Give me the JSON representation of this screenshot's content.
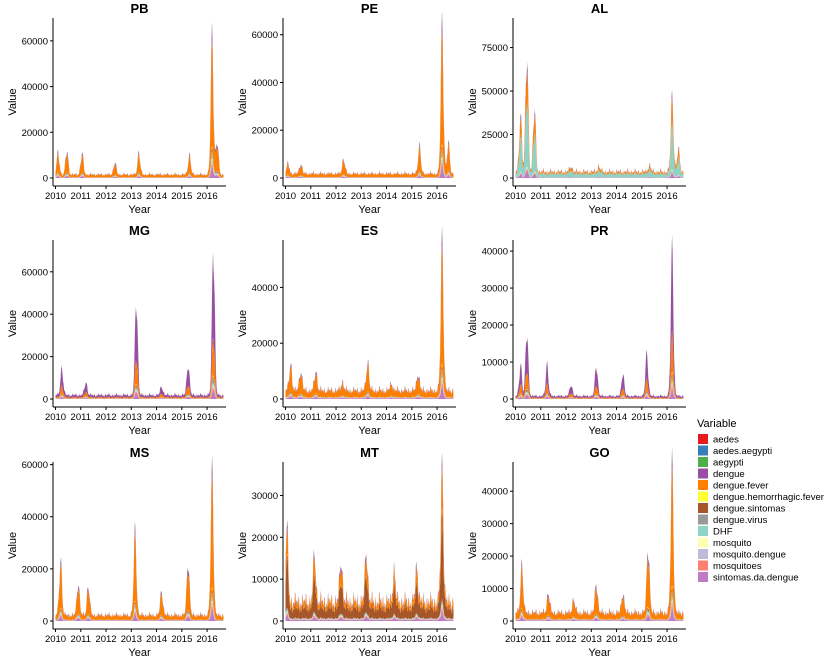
{
  "chart_data": {
    "type": "area",
    "stacked": true,
    "facets": [
      "PB",
      "PE",
      "AL",
      "MG",
      "ES",
      "PR",
      "MS",
      "MT",
      "GO"
    ],
    "xlabel": "Year",
    "ylabel": "Value",
    "x_ticks": [
      "2010",
      "2011",
      "2012",
      "2013",
      "2014",
      "2015",
      "2016"
    ],
    "xlim": [
      2009.9,
      2016.75
    ],
    "legend": {
      "title": "Variable",
      "placement": "right",
      "entries": [
        {
          "name": "aedes",
          "color": "#E41A1C"
        },
        {
          "name": "aedes.aegypti",
          "color": "#377EB8"
        },
        {
          "name": "aegypti",
          "color": "#4DAF4A"
        },
        {
          "name": "dengue",
          "color": "#984EA3"
        },
        {
          "name": "dengue.fever",
          "color": "#FF7F00"
        },
        {
          "name": "dengue.hemorrhagic.fever",
          "color": "#FFFF33"
        },
        {
          "name": "dengue.sintomas",
          "color": "#A65628"
        },
        {
          "name": "dengue.virus",
          "color": "#999999"
        },
        {
          "name": "DHF",
          "color": "#8DD3C7"
        },
        {
          "name": "mosquito",
          "color": "#FFFFB3"
        },
        {
          "name": "mosquito.dengue",
          "color": "#BEBADA"
        },
        {
          "name": "mosquitoes",
          "color": "#FB8072"
        },
        {
          "name": "sintomas.da.dengue",
          "color": "#C07BC5"
        }
      ]
    },
    "panels": [
      {
        "title": "PB",
        "y_ticks": [
          0,
          20000,
          40000,
          60000
        ],
        "ymax": 70000,
        "dominant": 4,
        "base": 1500,
        "events": [
          [
            2010.1,
            9000
          ],
          [
            2010.45,
            10000
          ],
          [
            2011.05,
            9000
          ],
          [
            2012.35,
            5000
          ],
          [
            2013.3,
            9000
          ],
          [
            2015.3,
            8000
          ],
          [
            2016.2,
            57000
          ],
          [
            2016.4,
            14000
          ]
        ]
      },
      {
        "title": "PE",
        "y_ticks": [
          0,
          20000,
          40000,
          60000
        ],
        "ymax": 67000,
        "dominant": 4,
        "base": 1800,
        "events": [
          [
            2010.1,
            4000
          ],
          [
            2010.6,
            4000
          ],
          [
            2012.3,
            6000
          ],
          [
            2015.3,
            11000
          ],
          [
            2016.2,
            58000
          ],
          [
            2016.45,
            12000
          ]
        ]
      },
      {
        "title": "AL",
        "y_ticks": [
          0,
          25000,
          50000,
          75000
        ],
        "ymax": 92000,
        "dominant": 8,
        "base": 3500,
        "events": [
          [
            2010.2,
            30000
          ],
          [
            2010.45,
            65000
          ],
          [
            2010.75,
            35000
          ],
          [
            2012.2,
            3000
          ],
          [
            2013.3,
            3000
          ],
          [
            2015.3,
            3500
          ],
          [
            2016.2,
            40000
          ],
          [
            2016.45,
            12000
          ]
        ]
      },
      {
        "title": "MG",
        "y_ticks": [
          0,
          20000,
          40000,
          60000
        ],
        "ymax": 75000,
        "dominant": 3,
        "base": 1800,
        "events": [
          [
            2010.25,
            12000
          ],
          [
            2011.2,
            6000
          ],
          [
            2013.2,
            44000
          ],
          [
            2014.2,
            4000
          ],
          [
            2015.25,
            14000
          ],
          [
            2016.25,
            68000
          ]
        ]
      },
      {
        "title": "ES",
        "y_ticks": [
          0,
          20000,
          40000
        ],
        "ymax": 57000,
        "dominant": 4,
        "base": 3000,
        "events": [
          [
            2010.2,
            9000
          ],
          [
            2010.6,
            7000
          ],
          [
            2011.2,
            7000
          ],
          [
            2012.25,
            3000
          ],
          [
            2013.25,
            10000
          ],
          [
            2014.2,
            2500
          ],
          [
            2015.25,
            6000
          ],
          [
            2016.2,
            50000
          ]
        ]
      },
      {
        "title": "PR",
        "y_ticks": [
          0,
          10000,
          20000,
          30000,
          40000
        ],
        "ymax": 43000,
        "dominant": 3,
        "base": 800,
        "events": [
          [
            2010.2,
            8000
          ],
          [
            2010.45,
            17000
          ],
          [
            2011.25,
            8000
          ],
          [
            2012.2,
            3000
          ],
          [
            2013.2,
            8000
          ],
          [
            2014.25,
            6000
          ],
          [
            2015.2,
            11000
          ],
          [
            2016.2,
            37000
          ]
        ]
      },
      {
        "title": "MS",
        "y_ticks": [
          0,
          20000,
          40000,
          60000
        ],
        "ymax": 61000,
        "dominant": 4,
        "base": 2200,
        "events": [
          [
            2010.2,
            20000
          ],
          [
            2010.9,
            12000
          ],
          [
            2011.3,
            11000
          ],
          [
            2013.15,
            30000
          ],
          [
            2014.2,
            9000
          ],
          [
            2015.25,
            20000
          ],
          [
            2016.2,
            52000
          ]
        ]
      },
      {
        "title": "MT",
        "y_ticks": [
          0,
          10000,
          20000,
          30000
        ],
        "ymax": 38000,
        "dominant": 6,
        "base": 4500,
        "events": [
          [
            2010.05,
            17000
          ],
          [
            2011.15,
            11000
          ],
          [
            2012.2,
            10000
          ],
          [
            2013.2,
            12000
          ],
          [
            2014.3,
            7000
          ],
          [
            2015.2,
            8000
          ],
          [
            2016.2,
            30000
          ]
        ]
      },
      {
        "title": "GO",
        "y_ticks": [
          0,
          10000,
          20000,
          30000,
          40000
        ],
        "ymax": 49000,
        "dominant": 4,
        "base": 2500,
        "events": [
          [
            2010.25,
            14000
          ],
          [
            2011.3,
            6000
          ],
          [
            2012.3,
            4000
          ],
          [
            2013.2,
            9000
          ],
          [
            2014.25,
            6000
          ],
          [
            2015.25,
            20000
          ],
          [
            2016.2,
            43000
          ]
        ]
      }
    ]
  }
}
